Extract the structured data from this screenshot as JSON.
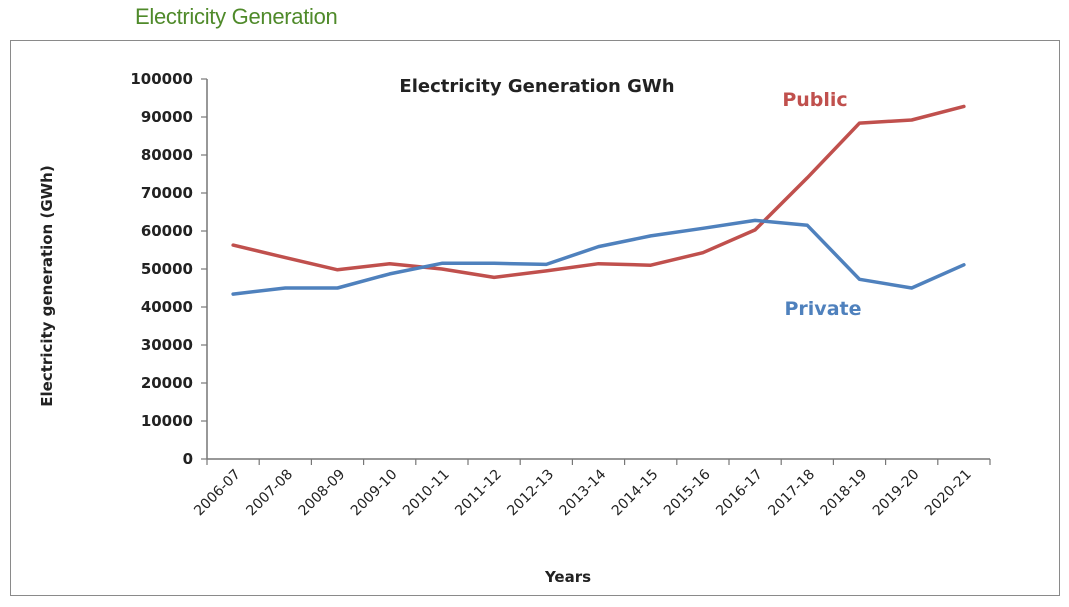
{
  "page": {
    "title": "Electricity Generation"
  },
  "chart_data": {
    "type": "line",
    "title": "Electricity Generation GWh",
    "xlabel": "Years",
    "ylabel": "Electricity generation (GWh)",
    "ylim": [
      0,
      100000
    ],
    "yticks": [
      "100000",
      "90000",
      "80000",
      "70000",
      "60000",
      "50000",
      "40000",
      "30000",
      "20000",
      "10000",
      "0"
    ],
    "grid": false,
    "categories": [
      "2006-07",
      "2007-08",
      "2008-09",
      "2009-10",
      "2010-11",
      "2011-12",
      "2012-13",
      "2013-14",
      "2014-15",
      "2015-16",
      "2016-17",
      "2017-18",
      "2018-19",
      "2019-20",
      "2020-21"
    ],
    "series": [
      {
        "name": "Public",
        "color": "#c0504d",
        "values": [
          56300,
          53000,
          49800,
          51400,
          50000,
          47800,
          49500,
          51400,
          51000,
          54300,
          60300,
          74000,
          88400,
          89200,
          92800
        ]
      },
      {
        "name": "Private",
        "color": "#4f81bd",
        "values": [
          43400,
          45000,
          45000,
          48700,
          51500,
          51500,
          51200,
          55900,
          58700,
          60700,
          62800,
          61500,
          47300,
          45000,
          51100
        ]
      }
    ]
  }
}
